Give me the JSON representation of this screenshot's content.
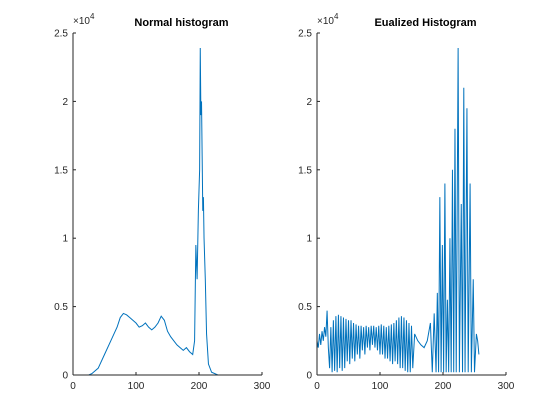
{
  "chart_data": [
    {
      "type": "line",
      "title": "Normal histogram",
      "xlim": [
        0,
        300
      ],
      "xticks": [
        0,
        100,
        200,
        300
      ],
      "ylim": [
        0,
        2.5
      ],
      "yticks": [
        0,
        0.5,
        1,
        1.5,
        2,
        2.5
      ],
      "y_multiplier": {
        "base": "×10",
        "exponent": "4"
      },
      "series": [
        {
          "color": "#0072bd",
          "x": [
            0,
            10,
            20,
            25,
            30,
            40,
            50,
            60,
            70,
            75,
            80,
            85,
            90,
            95,
            100,
            105,
            110,
            115,
            120,
            125,
            130,
            135,
            140,
            145,
            150,
            155,
            160,
            165,
            170,
            175,
            180,
            185,
            190,
            193,
            195,
            197,
            199,
            201,
            202,
            203,
            204,
            205,
            206,
            207,
            208,
            210,
            212,
            215,
            220,
            230,
            255
          ],
          "values": [
            0,
            0,
            0,
            0,
            0.01,
            0.05,
            0.15,
            0.25,
            0.35,
            0.42,
            0.45,
            0.44,
            0.42,
            0.4,
            0.38,
            0.35,
            0.36,
            0.38,
            0.35,
            0.33,
            0.35,
            0.38,
            0.43,
            0.4,
            0.32,
            0.28,
            0.25,
            0.22,
            0.2,
            0.18,
            0.2,
            0.17,
            0.15,
            0.25,
            0.95,
            0.7,
            1.2,
            1.5,
            2.39,
            1.9,
            2,
            1.6,
            1.2,
            1.3,
            1,
            0.7,
            0.3,
            0.08,
            0.02,
            0,
            0
          ]
        }
      ]
    },
    {
      "type": "line",
      "title": "Eualized Histogram",
      "xlim": [
        0,
        300
      ],
      "xticks": [
        0,
        100,
        200,
        300
      ],
      "ylim": [
        0,
        2.5
      ],
      "yticks": [
        0,
        0.5,
        1,
        1.5,
        2,
        2.5
      ],
      "y_multiplier": {
        "base": "×10",
        "exponent": "4"
      },
      "series": [
        {
          "color": "#0072bd",
          "x": [
            0,
            2,
            4,
            6,
            8,
            10,
            12,
            14,
            16,
            18,
            20,
            22,
            24,
            26,
            28,
            30,
            32,
            34,
            36,
            38,
            40,
            42,
            44,
            46,
            48,
            50,
            52,
            54,
            56,
            58,
            60,
            62,
            64,
            66,
            68,
            70,
            72,
            74,
            76,
            78,
            80,
            82,
            84,
            86,
            88,
            90,
            92,
            94,
            96,
            98,
            100,
            102,
            104,
            106,
            108,
            110,
            112,
            114,
            116,
            118,
            120,
            122,
            124,
            126,
            128,
            130,
            132,
            134,
            136,
            138,
            140,
            142,
            144,
            146,
            148,
            150,
            152,
            155,
            160,
            165,
            170,
            175,
            180,
            183,
            186,
            189,
            191,
            193,
            195,
            197,
            199,
            201,
            203,
            205,
            207,
            209,
            211,
            213,
            215,
            217,
            219,
            221,
            224,
            226,
            229,
            231,
            233,
            235,
            238,
            240,
            243,
            245,
            248,
            250,
            253,
            255,
            257
          ],
          "values": [
            0.25,
            0.2,
            0.3,
            0.22,
            0.32,
            0.25,
            0.35,
            0.28,
            0.47,
            0.2,
            0.05,
            0.35,
            0.02,
            0.4,
            0.03,
            0.43,
            0.02,
            0.44,
            0.05,
            0.43,
            0.03,
            0.42,
            0.05,
            0.41,
            0.1,
            0.4,
            0.08,
            0.4,
            0.12,
            0.38,
            0.1,
            0.37,
            0.15,
            0.36,
            0.12,
            0.36,
            0.18,
            0.35,
            0.15,
            0.36,
            0.2,
            0.35,
            0.18,
            0.36,
            0.22,
            0.36,
            0.2,
            0.35,
            0.18,
            0.36,
            0.15,
            0.37,
            0.15,
            0.36,
            0.12,
            0.35,
            0.12,
            0.36,
            0.1,
            0.37,
            0.08,
            0.38,
            0.1,
            0.4,
            0.08,
            0.42,
            0.05,
            0.43,
            0.05,
            0.42,
            0.03,
            0.4,
            0.02,
            0.38,
            0.02,
            0.36,
            0.05,
            0.3,
            0.25,
            0.22,
            0.2,
            0.25,
            0.38,
            0.02,
            0.45,
            0.02,
            0.6,
            0.02,
            1.3,
            0.02,
            0.95,
            0.02,
            1.4,
            0.02,
            0.55,
            0.02,
            1,
            0.02,
            1.5,
            0.02,
            1.8,
            0.02,
            2.39,
            0.02,
            1.25,
            0.02,
            2.1,
            0.02,
            1.95,
            0.02,
            1.4,
            0.02,
            0.7,
            0.02,
            0.3,
            0.25,
            0.15
          ]
        }
      ]
    }
  ]
}
